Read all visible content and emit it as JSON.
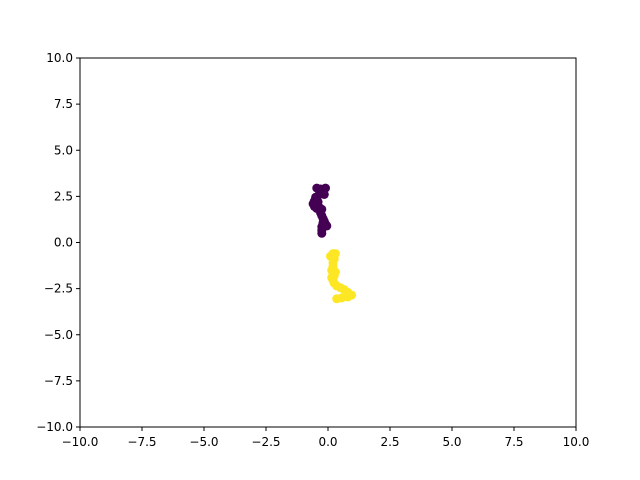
{
  "chart_data": {
    "type": "scatter",
    "title": "",
    "xlabel": "",
    "ylabel": "",
    "xlim": [
      -10,
      10
    ],
    "ylim": [
      -10,
      10
    ],
    "grid": false,
    "xticks": [
      -10,
      -7.5,
      -5,
      -2.5,
      0,
      2.5,
      5,
      7.5,
      10
    ],
    "yticks": [
      -10,
      -7.5,
      -5,
      -2.5,
      0,
      2.5,
      5,
      7.5,
      10
    ],
    "xtick_labels": [
      "−10.0",
      "−7.5",
      "−5.0",
      "−2.5",
      "0.0",
      "2.5",
      "5.0",
      "7.5",
      "10.0"
    ],
    "ytick_labels": [
      "−10.0",
      "−7.5",
      "−5.0",
      "−2.5",
      "0.0",
      "2.5",
      "5.0",
      "7.5",
      "10.0"
    ],
    "series": [
      {
        "color": "#440154",
        "points": [
          [
            -0.45,
            2.95
          ],
          [
            -0.3,
            2.9
          ],
          [
            -0.1,
            2.95
          ],
          [
            -0.2,
            2.75
          ],
          [
            -0.35,
            2.6
          ],
          [
            -0.5,
            2.45
          ],
          [
            -0.55,
            2.25
          ],
          [
            -0.6,
            2.1
          ],
          [
            -0.55,
            1.95
          ],
          [
            -0.45,
            1.85
          ],
          [
            -0.35,
            1.9
          ],
          [
            -0.25,
            1.8
          ],
          [
            -0.3,
            1.6
          ],
          [
            -0.25,
            1.45
          ],
          [
            -0.2,
            1.3
          ],
          [
            -0.15,
            1.15
          ],
          [
            -0.1,
            1.0
          ],
          [
            -0.05,
            0.9
          ],
          [
            -0.25,
            0.85
          ],
          [
            -0.25,
            0.65
          ],
          [
            -0.25,
            0.5
          ],
          [
            -0.5,
            2.0
          ],
          [
            -0.4,
            2.2
          ],
          [
            -0.15,
            2.6
          ],
          [
            -0.2,
            1.05
          ]
        ]
      },
      {
        "color": "#fde725",
        "points": [
          [
            0.2,
            -0.6
          ],
          [
            0.3,
            -0.6
          ],
          [
            0.1,
            -0.75
          ],
          [
            0.25,
            -0.9
          ],
          [
            0.2,
            -1.1
          ],
          [
            0.2,
            -1.3
          ],
          [
            0.15,
            -1.5
          ],
          [
            0.2,
            -1.7
          ],
          [
            0.15,
            -1.9
          ],
          [
            0.2,
            -2.05
          ],
          [
            0.25,
            -2.2
          ],
          [
            0.35,
            -2.35
          ],
          [
            0.5,
            -2.45
          ],
          [
            0.65,
            -2.55
          ],
          [
            0.8,
            -2.7
          ],
          [
            0.95,
            -2.85
          ],
          [
            0.8,
            -2.95
          ],
          [
            0.55,
            -3.0
          ],
          [
            0.35,
            -3.05
          ],
          [
            0.3,
            -1.6
          ],
          [
            0.25,
            -1.8
          ]
        ]
      }
    ]
  }
}
